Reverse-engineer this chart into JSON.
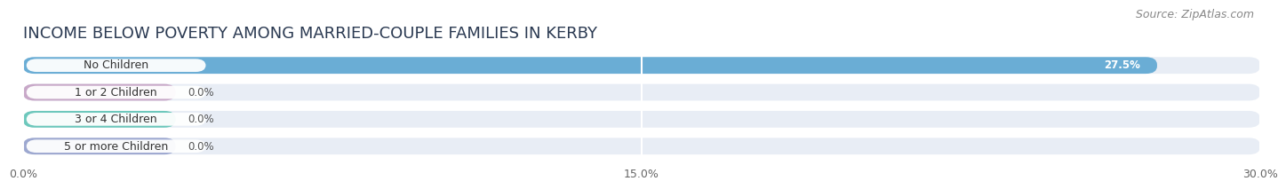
{
  "title": "INCOME BELOW POVERTY AMONG MARRIED-COUPLE FAMILIES IN KERBY",
  "source": "Source: ZipAtlas.com",
  "categories": [
    "No Children",
    "1 or 2 Children",
    "3 or 4 Children",
    "5 or more Children"
  ],
  "values": [
    27.5,
    0.0,
    0.0,
    0.0
  ],
  "bar_colors": [
    "#6aadd5",
    "#c8a8c8",
    "#6dc8bc",
    "#9da8d0"
  ],
  "xlim": [
    0,
    30.0
  ],
  "xticks": [
    0.0,
    15.0,
    30.0
  ],
  "xtick_labels": [
    "0.0%",
    "15.0%",
    "30.0%"
  ],
  "bg_color": "#ffffff",
  "bar_bg_color": "#e8edf5",
  "title_fontsize": 13,
  "source_fontsize": 9,
  "label_fontsize": 9,
  "value_fontsize": 8.5
}
